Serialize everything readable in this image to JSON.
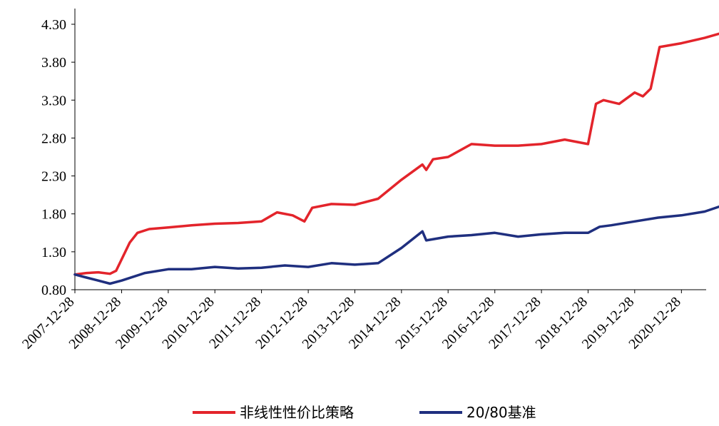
{
  "chart_data": {
    "type": "line",
    "title": "",
    "xlabel": "",
    "ylabel": "",
    "ylim": [
      0.8,
      4.3
    ],
    "yticks": [
      "0.80",
      "1.30",
      "1.80",
      "2.30",
      "2.80",
      "3.30",
      "3.80",
      "4.30"
    ],
    "xticks": [
      "2007-12-28",
      "2008-12-28",
      "2009-12-28",
      "2010-12-28",
      "2011-12-28",
      "2012-12-28",
      "2013-12-28",
      "2014-12-28",
      "2015-12-28",
      "2016-12-28",
      "2017-12-28",
      "2018-12-28",
      "2019-12-28",
      "2020-12-28"
    ],
    "grid": false,
    "legend_position": "bottom",
    "series": [
      {
        "name": "非线性性价比策略",
        "color": "#e3242b",
        "points": [
          [
            "2007-12-28",
            1.0
          ],
          [
            "2008-03-28",
            1.02
          ],
          [
            "2008-06-28",
            1.03
          ],
          [
            "2008-09-28",
            1.01
          ],
          [
            "2008-11-15",
            1.05
          ],
          [
            "2008-12-28",
            1.2
          ],
          [
            "2009-03-01",
            1.42
          ],
          [
            "2009-05-01",
            1.55
          ],
          [
            "2009-08-01",
            1.6
          ],
          [
            "2009-12-28",
            1.62
          ],
          [
            "2010-06-28",
            1.65
          ],
          [
            "2010-12-28",
            1.67
          ],
          [
            "2011-06-28",
            1.68
          ],
          [
            "2011-12-28",
            1.7
          ],
          [
            "2012-04-28",
            1.82
          ],
          [
            "2012-08-28",
            1.78
          ],
          [
            "2012-11-28",
            1.7
          ],
          [
            "2013-01-28",
            1.88
          ],
          [
            "2013-06-28",
            1.93
          ],
          [
            "2013-12-28",
            1.92
          ],
          [
            "2014-06-28",
            2.0
          ],
          [
            "2014-12-28",
            2.25
          ],
          [
            "2015-06-10",
            2.45
          ],
          [
            "2015-07-10",
            2.38
          ],
          [
            "2015-09-01",
            2.52
          ],
          [
            "2015-12-28",
            2.55
          ],
          [
            "2016-06-28",
            2.72
          ],
          [
            "2016-12-28",
            2.7
          ],
          [
            "2017-06-28",
            2.7
          ],
          [
            "2017-12-28",
            2.72
          ],
          [
            "2018-06-28",
            2.78
          ],
          [
            "2018-12-28",
            2.72
          ],
          [
            "2019-02-28",
            3.25
          ],
          [
            "2019-04-28",
            3.3
          ],
          [
            "2019-08-28",
            3.25
          ],
          [
            "2019-12-28",
            3.4
          ],
          [
            "2020-03-01",
            3.35
          ],
          [
            "2020-05-01",
            3.45
          ],
          [
            "2020-07-10",
            4.0
          ],
          [
            "2020-12-28",
            4.05
          ],
          [
            "2021-06-28",
            4.12
          ],
          [
            "2021-10-28",
            4.18
          ]
        ]
      },
      {
        "name": "20/80基准",
        "color": "#1f2f7f",
        "points": [
          [
            "2007-12-28",
            1.0
          ],
          [
            "2008-03-28",
            0.96
          ],
          [
            "2008-06-28",
            0.92
          ],
          [
            "2008-09-28",
            0.88
          ],
          [
            "2008-12-28",
            0.92
          ],
          [
            "2009-06-28",
            1.02
          ],
          [
            "2009-12-28",
            1.07
          ],
          [
            "2010-06-28",
            1.07
          ],
          [
            "2010-12-28",
            1.1
          ],
          [
            "2011-06-28",
            1.08
          ],
          [
            "2011-12-28",
            1.09
          ],
          [
            "2012-06-28",
            1.12
          ],
          [
            "2012-12-28",
            1.1
          ],
          [
            "2013-06-28",
            1.15
          ],
          [
            "2013-12-28",
            1.13
          ],
          [
            "2014-06-28",
            1.15
          ],
          [
            "2014-12-28",
            1.35
          ],
          [
            "2015-06-10",
            1.57
          ],
          [
            "2015-07-10",
            1.45
          ],
          [
            "2015-12-28",
            1.5
          ],
          [
            "2016-06-28",
            1.52
          ],
          [
            "2016-12-28",
            1.55
          ],
          [
            "2017-06-28",
            1.5
          ],
          [
            "2017-12-28",
            1.53
          ],
          [
            "2018-06-28",
            1.55
          ],
          [
            "2018-12-28",
            1.55
          ],
          [
            "2019-03-28",
            1.63
          ],
          [
            "2019-06-28",
            1.65
          ],
          [
            "2019-12-28",
            1.7
          ],
          [
            "2020-06-28",
            1.75
          ],
          [
            "2020-12-28",
            1.78
          ],
          [
            "2021-06-28",
            1.83
          ],
          [
            "2021-10-28",
            1.9
          ]
        ]
      }
    ]
  }
}
